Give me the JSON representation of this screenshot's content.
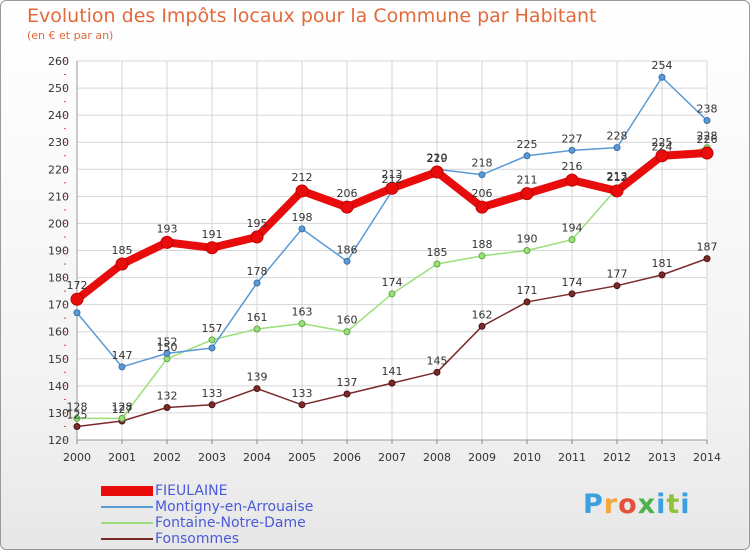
{
  "chart_data": {
    "type": "line",
    "title": "Evolution des Impôts locaux pour la Commune par Habitant",
    "subtitle": "(en € et par an)",
    "xlabel": "",
    "ylabel": "",
    "x": [
      "2000",
      "2001",
      "2002",
      "2003",
      "2004",
      "2005",
      "2006",
      "2007",
      "2008",
      "2009",
      "2010",
      "2011",
      "2012",
      "2013",
      "2014"
    ],
    "ylim": [
      120,
      260
    ],
    "yticks": [
      120,
      130,
      140,
      150,
      160,
      170,
      180,
      190,
      200,
      210,
      220,
      230,
      240,
      250,
      260
    ],
    "grid": true,
    "legend_position": "bottom-left",
    "series": [
      {
        "name": "FIEULAINE",
        "color": "#e80c0c",
        "values": [
          172,
          185,
          193,
          191,
          195,
          212,
          206,
          213,
          219,
          206,
          211,
          216,
          212,
          225,
          226
        ],
        "labels": [
          "172",
          "185",
          "193",
          "191",
          "195",
          "212",
          "206",
          "213",
          "219",
          "206",
          "211",
          "216",
          "212",
          "225",
          "226"
        ]
      },
      {
        "name": "Montigny-en-Arrouaise",
        "color": "#5b9bd5",
        "values": [
          167,
          147,
          152,
          154,
          178,
          198,
          186,
          212,
          220,
          218,
          225,
          227,
          228,
          254,
          238
        ],
        "labels": [
          "",
          "147",
          "152",
          "",
          "178",
          "198",
          "186",
          "212",
          "220",
          "218",
          "225",
          "227",
          "228",
          "254",
          "238"
        ]
      },
      {
        "name": "Fontaine-Notre-Dame",
        "color": "#99e07a",
        "values": [
          128,
          128,
          150,
          157,
          161,
          163,
          160,
          174,
          185,
          188,
          190,
          194,
          213,
          224,
          228
        ],
        "labels": [
          "128",
          "128",
          "150",
          "157",
          "161",
          "163",
          "160",
          "174",
          "185",
          "188",
          "190",
          "194",
          "213",
          "224",
          "228"
        ]
      },
      {
        "name": "Fonsommes",
        "color": "#7b2a2a",
        "values": [
          125,
          127,
          132,
          133,
          139,
          133,
          137,
          141,
          145,
          162,
          171,
          174,
          177,
          181,
          187
        ],
        "labels": [
          "125",
          "127",
          "132",
          "133",
          "139",
          "133",
          "137",
          "141",
          "145",
          "162",
          "171",
          "174",
          "177",
          "181",
          "187"
        ]
      }
    ]
  },
  "logo": {
    "letters": [
      "P",
      "r",
      "o",
      "x",
      "i",
      "t",
      "i"
    ],
    "colors": [
      "#3aa0e0",
      "#f2a93b",
      "#e5503a",
      "#4bb34b",
      "#3aa0e0",
      "#8fc33a",
      "#3aa0e0"
    ]
  }
}
